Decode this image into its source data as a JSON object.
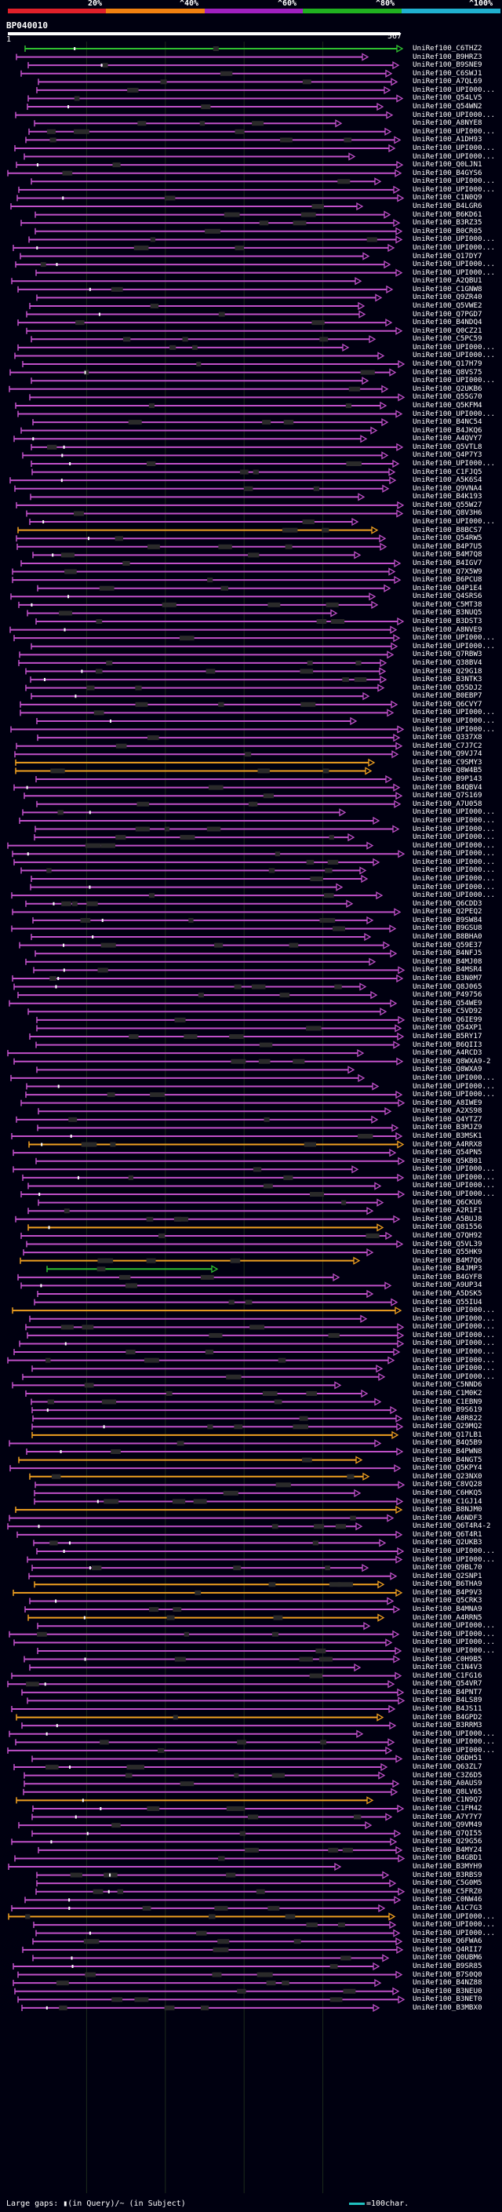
{
  "legend": {
    "labels": [
      "20%",
      "^40%",
      "^60%",
      "^80%",
      "^100%"
    ],
    "colors": [
      "#e0202a",
      "#f08010",
      "#a020c0",
      "#20b020",
      "#20b0d0"
    ]
  },
  "query": {
    "name": "BP040010",
    "start": "1",
    "end": "567"
  },
  "colors": {
    "magenta": "#c050c8",
    "orange": "#f0a020",
    "green": "#30c030",
    "gap": "#2a2a2a"
  },
  "hits": [
    {
      "label": "UniRef100_C6THZ2",
      "color": "green"
    },
    {
      "label": "UniRef100_B9HRZ3",
      "color": "magenta"
    },
    {
      "label": "UniRef100_B9SNE9",
      "color": "magenta"
    },
    {
      "label": "UniRef100_C6SWJ1",
      "color": "magenta"
    },
    {
      "label": "UniRef100_A7QL69",
      "color": "magenta"
    },
    {
      "label": "UniRef100_UPI000...",
      "color": "magenta"
    },
    {
      "label": "UniRef100_Q54LV5",
      "color": "magenta"
    },
    {
      "label": "UniRef100_Q54WN2",
      "color": "magenta"
    },
    {
      "label": "UniRef100_UPI000...",
      "color": "magenta"
    },
    {
      "label": "UniRef100_A8NYE8",
      "color": "magenta"
    },
    {
      "label": "UniRef100_UPI000...",
      "color": "magenta"
    },
    {
      "label": "UniRef100_A1DH93",
      "color": "magenta"
    },
    {
      "label": "UniRef100_UPI000...",
      "color": "magenta"
    },
    {
      "label": "UniRef100_UPI000...",
      "color": "magenta"
    },
    {
      "label": "UniRef100_Q0LJN1",
      "color": "magenta"
    },
    {
      "label": "UniRef100_B4GYS6",
      "color": "magenta"
    },
    {
      "label": "UniRef100_UPI000...",
      "color": "magenta"
    },
    {
      "label": "UniRef100_UPI000...",
      "color": "magenta"
    },
    {
      "label": "UniRef100_C1N0Q9",
      "color": "magenta"
    },
    {
      "label": "UniRef100_B4LGR6",
      "color": "magenta"
    },
    {
      "label": "UniRef100_B6KD61",
      "color": "magenta"
    },
    {
      "label": "UniRef100_B3RZ35",
      "color": "magenta"
    },
    {
      "label": "UniRef100_B0CR05",
      "color": "magenta"
    },
    {
      "label": "UniRef100_UPI000...",
      "color": "magenta"
    },
    {
      "label": "UniRef100_UPI000...",
      "color": "magenta"
    },
    {
      "label": "UniRef100_Q17DY7",
      "color": "magenta"
    },
    {
      "label": "UniRef100_UPI000...",
      "color": "magenta"
    },
    {
      "label": "UniRef100_UPI000...",
      "color": "magenta"
    },
    {
      "label": "UniRef100_A2QBU1",
      "color": "magenta"
    },
    {
      "label": "UniRef100_C1GNW8",
      "color": "magenta"
    },
    {
      "label": "UniRef100_Q9ZR40",
      "color": "magenta"
    },
    {
      "label": "UniRef100_Q5VWE2",
      "color": "magenta"
    },
    {
      "label": "UniRef100_Q7PGD7",
      "color": "magenta"
    },
    {
      "label": "UniRef100_B4NDQ4",
      "color": "magenta"
    },
    {
      "label": "UniRef100_Q0CZ21",
      "color": "magenta"
    },
    {
      "label": "UniRef100_C5PC59",
      "color": "magenta"
    },
    {
      "label": "UniRef100_UPI000...",
      "color": "magenta"
    },
    {
      "label": "UniRef100_UPI000...",
      "color": "magenta"
    },
    {
      "label": "UniRef100_Q17H79",
      "color": "magenta"
    },
    {
      "label": "UniRef100_Q8VS75",
      "color": "magenta"
    },
    {
      "label": "UniRef100_UPI000...",
      "color": "magenta"
    },
    {
      "label": "UniRef100_Q2UKB6",
      "color": "magenta"
    },
    {
      "label": "UniRef100_Q55G70",
      "color": "magenta"
    },
    {
      "label": "UniRef100_Q5KFM4",
      "color": "magenta"
    },
    {
      "label": "UniRef100_UPI000...",
      "color": "magenta"
    },
    {
      "label": "UniRef100_B4NC54",
      "color": "magenta"
    },
    {
      "label": "UniRef100_B4JKQ6",
      "color": "magenta"
    },
    {
      "label": "UniRef100_A4QVY7",
      "color": "magenta"
    },
    {
      "label": "UniRef100_Q5VTL8",
      "color": "magenta"
    },
    {
      "label": "UniRef100_Q4P7Y3",
      "color": "magenta"
    },
    {
      "label": "UniRef100_UPI000...",
      "color": "magenta"
    },
    {
      "label": "UniRef100_C1FJQ5",
      "color": "magenta"
    },
    {
      "label": "UniRef100_A5K6S4",
      "color": "magenta"
    },
    {
      "label": "UniRef100_Q9VNA4",
      "color": "magenta"
    },
    {
      "label": "UniRef100_B4K193",
      "color": "magenta"
    },
    {
      "label": "UniRef100_Q55W27",
      "color": "magenta"
    },
    {
      "label": "UniRef100_Q8V3H6",
      "color": "magenta"
    },
    {
      "label": "UniRef100_UPI000...",
      "color": "magenta"
    },
    {
      "label": "UniRef100_B8BCS7",
      "color": "orange"
    },
    {
      "label": "UniRef100_Q54RW5",
      "color": "magenta"
    },
    {
      "label": "UniRef100_B4P7U5",
      "color": "magenta"
    },
    {
      "label": "UniRef100_B4M7Q8",
      "color": "magenta"
    },
    {
      "label": "UniRef100_B4IGV7",
      "color": "magenta"
    },
    {
      "label": "UniRef100_Q7X5W9",
      "color": "magenta"
    },
    {
      "label": "UniRef100_B6PCU8",
      "color": "magenta"
    },
    {
      "label": "UniRef100_Q4P1E4",
      "color": "magenta"
    },
    {
      "label": "UniRef100_Q4SRS6",
      "color": "magenta"
    },
    {
      "label": "UniRef100_C5MT38",
      "color": "magenta"
    },
    {
      "label": "UniRef100_B3NUQ5",
      "color": "magenta"
    },
    {
      "label": "UniRef100_B3DST3",
      "color": "magenta"
    },
    {
      "label": "UniRef100_A8NVE9",
      "color": "magenta"
    },
    {
      "label": "UniRef100_UPI000...",
      "color": "magenta"
    },
    {
      "label": "UniRef100_UPI000...",
      "color": "magenta"
    },
    {
      "label": "UniRef100_Q7RBW3",
      "color": "magenta"
    },
    {
      "label": "UniRef100_Q38BV4",
      "color": "magenta"
    },
    {
      "label": "UniRef100_Q29G18",
      "color": "magenta"
    },
    {
      "label": "UniRef100_B3NTK3",
      "color": "magenta"
    },
    {
      "label": "UniRef100_Q55DJ2",
      "color": "magenta"
    },
    {
      "label": "UniRef100_B0EBP7",
      "color": "magenta"
    },
    {
      "label": "UniRef100_Q6CVY7",
      "color": "magenta"
    },
    {
      "label": "UniRef100_UPI000...",
      "color": "magenta"
    },
    {
      "label": "UniRef100_UPI000...",
      "color": "magenta"
    },
    {
      "label": "UniRef100_UPI000...",
      "color": "magenta"
    },
    {
      "label": "UniRef100_Q337X8",
      "color": "magenta"
    },
    {
      "label": "UniRef100_C7J7C2",
      "color": "magenta"
    },
    {
      "label": "UniRef100_Q9VJ74",
      "color": "magenta"
    },
    {
      "label": "UniRef100_C9SMY3",
      "color": "orange"
    },
    {
      "label": "UniRef100_Q8W4B5",
      "color": "orange"
    },
    {
      "label": "UniRef100_B9P143",
      "color": "magenta"
    },
    {
      "label": "UniRef100_B4QBV4",
      "color": "magenta"
    },
    {
      "label": "UniRef100_Q7S169",
      "color": "magenta"
    },
    {
      "label": "UniRef100_A7U058",
      "color": "magenta"
    },
    {
      "label": "UniRef100_UPI000...",
      "color": "magenta"
    },
    {
      "label": "UniRef100_UPI000...",
      "color": "magenta"
    },
    {
      "label": "UniRef100_UPI000...",
      "color": "magenta"
    },
    {
      "label": "UniRef100_UPI000...",
      "color": "magenta"
    },
    {
      "label": "UniRef100_UPI000...",
      "color": "magenta"
    },
    {
      "label": "UniRef100_UPI000...",
      "color": "magenta"
    },
    {
      "label": "UniRef100_UPI000...",
      "color": "magenta"
    },
    {
      "label": "UniRef100_UPI000...",
      "color": "magenta"
    },
    {
      "label": "UniRef100_UPI000...",
      "color": "magenta"
    },
    {
      "label": "UniRef100_UPI000...",
      "color": "magenta"
    },
    {
      "label": "UniRef100_UPI000...",
      "color": "magenta"
    },
    {
      "label": "UniRef100_Q6CDD3",
      "color": "magenta"
    },
    {
      "label": "UniRef100_Q2PEQ2",
      "color": "magenta"
    },
    {
      "label": "UniRef100_B9SW84",
      "color": "magenta"
    },
    {
      "label": "UniRef100_B9GSU8",
      "color": "magenta"
    },
    {
      "label": "UniRef100_B8BHA0",
      "color": "magenta"
    },
    {
      "label": "UniRef100_Q59E37",
      "color": "magenta"
    },
    {
      "label": "UniRef100_B4NFJ5",
      "color": "magenta"
    },
    {
      "label": "UniRef100_B4MJ08",
      "color": "magenta"
    },
    {
      "label": "UniRef100_B4MSR4",
      "color": "magenta"
    },
    {
      "label": "UniRef100_B3N0M7",
      "color": "magenta"
    },
    {
      "label": "UniRef100_Q8J065",
      "color": "magenta"
    },
    {
      "label": "UniRef100_P49756",
      "color": "magenta"
    },
    {
      "label": "UniRef100_Q54WE9",
      "color": "magenta"
    },
    {
      "label": "UniRef100_C5VD92",
      "color": "magenta"
    },
    {
      "label": "UniRef100_Q6IE99",
      "color": "magenta"
    },
    {
      "label": "UniRef100_Q54XP1",
      "color": "magenta"
    },
    {
      "label": "UniRef100_B5RY17",
      "color": "magenta"
    },
    {
      "label": "UniRef100_B6QII3",
      "color": "magenta"
    },
    {
      "label": "UniRef100_A4RCD3",
      "color": "magenta"
    },
    {
      "label": "UniRef100_Q8WXA9-2",
      "color": "magenta"
    },
    {
      "label": "UniRef100_Q8WXA9",
      "color": "magenta"
    },
    {
      "label": "UniRef100_UPI000...",
      "color": "magenta"
    },
    {
      "label": "UniRef100_UPI000...",
      "color": "magenta"
    },
    {
      "label": "UniRef100_UPI000...",
      "color": "magenta"
    },
    {
      "label": "UniRef100_A8IWE9",
      "color": "magenta"
    },
    {
      "label": "UniRef100_A2XS98",
      "color": "magenta"
    },
    {
      "label": "UniRef100_Q4YTZ7",
      "color": "magenta"
    },
    {
      "label": "UniRef100_B3MJZ9",
      "color": "magenta"
    },
    {
      "label": "UniRef100_B3MSK1",
      "color": "magenta"
    },
    {
      "label": "UniRef100_A4RRX8",
      "color": "orange"
    },
    {
      "label": "UniRef100_Q54PN5",
      "color": "magenta"
    },
    {
      "label": "UniRef100_Q5KB01",
      "color": "magenta"
    },
    {
      "label": "UniRef100_UPI000...",
      "color": "magenta"
    },
    {
      "label": "UniRef100_UPI000...",
      "color": "magenta"
    },
    {
      "label": "UniRef100_UPI000...",
      "color": "magenta"
    },
    {
      "label": "UniRef100_UPI000...",
      "color": "magenta"
    },
    {
      "label": "UniRef100_Q6CKU6",
      "color": "magenta"
    },
    {
      "label": "UniRef100_A2R1F1",
      "color": "magenta"
    },
    {
      "label": "UniRef100_A5BUJ8",
      "color": "magenta"
    },
    {
      "label": "UniRef100_Q81556",
      "color": "orange"
    },
    {
      "label": "UniRef100_Q7QH92",
      "color": "magenta"
    },
    {
      "label": "UniRef100_Q5VL39",
      "color": "magenta"
    },
    {
      "label": "UniRef100_Q55HK9",
      "color": "magenta"
    },
    {
      "label": "UniRef100_B4M7Q6",
      "color": "orange"
    },
    {
      "label": "UniRef100_B4JMP3",
      "color": "green"
    },
    {
      "label": "UniRef100_B4GYF8",
      "color": "magenta"
    },
    {
      "label": "UniRef100_A9UP34",
      "color": "magenta"
    },
    {
      "label": "UniRef100_A5DSK5",
      "color": "magenta"
    },
    {
      "label": "UniRef100_Q55IU4",
      "color": "magenta"
    },
    {
      "label": "UniRef100_UPI000...",
      "color": "orange"
    },
    {
      "label": "UniRef100_UPI000...",
      "color": "magenta"
    },
    {
      "label": "UniRef100_UPI000...",
      "color": "magenta"
    },
    {
      "label": "UniRef100_UPI000...",
      "color": "magenta"
    },
    {
      "label": "UniRef100_UPI000...",
      "color": "magenta"
    },
    {
      "label": "UniRef100_UPI000...",
      "color": "magenta"
    },
    {
      "label": "UniRef100_UPI000...",
      "color": "magenta"
    },
    {
      "label": "UniRef100_UPI000...",
      "color": "magenta"
    },
    {
      "label": "UniRef100_UPI000...",
      "color": "magenta"
    },
    {
      "label": "UniRef100_C5NND6",
      "color": "magenta"
    },
    {
      "label": "UniRef100_C1M0K2",
      "color": "magenta"
    },
    {
      "label": "UniRef100_C1EBN9",
      "color": "magenta"
    },
    {
      "label": "UniRef100_B9S619",
      "color": "magenta"
    },
    {
      "label": "UniRef100_A8R822",
      "color": "magenta"
    },
    {
      "label": "UniRef100_Q29MQ2",
      "color": "magenta"
    },
    {
      "label": "UniRef100_Q17LB1",
      "color": "orange"
    },
    {
      "label": "UniRef100_B4Q5B9",
      "color": "magenta"
    },
    {
      "label": "UniRef100_B4PWN8",
      "color": "magenta"
    },
    {
      "label": "UniRef100_B4NGT5",
      "color": "orange"
    },
    {
      "label": "UniRef100_Q5KPY4",
      "color": "magenta"
    },
    {
      "label": "UniRef100_Q23NX0",
      "color": "orange"
    },
    {
      "label": "UniRef100_C8VQ28",
      "color": "magenta"
    },
    {
      "label": "UniRef100_C6HKQ5",
      "color": "magenta"
    },
    {
      "label": "UniRef100_C1GJ14",
      "color": "magenta"
    },
    {
      "label": "UniRef100_B8NJM0",
      "color": "orange"
    },
    {
      "label": "UniRef100_A6NDF3",
      "color": "magenta"
    },
    {
      "label": "UniRef100_Q6T4R4-2",
      "color": "magenta"
    },
    {
      "label": "UniRef100_Q6T4R1",
      "color": "magenta"
    },
    {
      "label": "UniRef100_Q2UKB3",
      "color": "magenta"
    },
    {
      "label": "UniRef100_UPI000...",
      "color": "magenta"
    },
    {
      "label": "UniRef100_UPI000...",
      "color": "magenta"
    },
    {
      "label": "UniRef100_Q9BL70",
      "color": "magenta"
    },
    {
      "label": "UniRef100_Q2SNP1",
      "color": "magenta"
    },
    {
      "label": "UniRef100_B6THA9",
      "color": "orange"
    },
    {
      "label": "UniRef100_B4P9V3",
      "color": "orange"
    },
    {
      "label": "UniRef100_Q5CRK3",
      "color": "magenta"
    },
    {
      "label": "UniRef100_B4MNA9",
      "color": "magenta"
    },
    {
      "label": "UniRef100_A4RRN5",
      "color": "orange"
    },
    {
      "label": "UniRef100_UPI000...",
      "color": "magenta"
    },
    {
      "label": "UniRef100_UPI000...",
      "color": "magenta"
    },
    {
      "label": "UniRef100_UPI000...",
      "color": "magenta"
    },
    {
      "label": "UniRef100_UPI000...",
      "color": "magenta"
    },
    {
      "label": "UniRef100_C0H9B5",
      "color": "magenta"
    },
    {
      "label": "UniRef100_C1N4V3",
      "color": "magenta"
    },
    {
      "label": "UniRef100_C1FG16",
      "color": "magenta"
    },
    {
      "label": "UniRef100_Q54VR7",
      "color": "magenta"
    },
    {
      "label": "UniRef100_B4PNT7",
      "color": "magenta"
    },
    {
      "label": "UniRef100_B4LS89",
      "color": "magenta"
    },
    {
      "label": "UniRef100_B4JS11",
      "color": "magenta"
    },
    {
      "label": "UniRef100_B4GPD2",
      "color": "orange"
    },
    {
      "label": "UniRef100_B3RRM3",
      "color": "magenta"
    },
    {
      "label": "UniRef100_UPI000...",
      "color": "magenta"
    },
    {
      "label": "UniRef100_UPI000...",
      "color": "magenta"
    },
    {
      "label": "UniRef100_UPI000...",
      "color": "magenta"
    },
    {
      "label": "UniRef100_Q6DH51",
      "color": "magenta"
    },
    {
      "label": "UniRef100_Q63ZL7",
      "color": "magenta"
    },
    {
      "label": "UniRef100_C3Z6D5",
      "color": "magenta"
    },
    {
      "label": "UniRef100_A0AUS9",
      "color": "magenta"
    },
    {
      "label": "UniRef100_Q8LV65",
      "color": "magenta"
    },
    {
      "label": "UniRef100_C1N9Q7",
      "color": "orange"
    },
    {
      "label": "UniRef100_C1FM42",
      "color": "magenta"
    },
    {
      "label": "UniRef100_A7Y7Y7",
      "color": "magenta"
    },
    {
      "label": "UniRef100_Q9VM49",
      "color": "magenta"
    },
    {
      "label": "UniRef100_Q7QI55",
      "color": "magenta"
    },
    {
      "label": "UniRef100_Q29G56",
      "color": "magenta"
    },
    {
      "label": "UniRef100_B4MY24",
      "color": "magenta"
    },
    {
      "label": "UniRef100_B4GBD1",
      "color": "magenta"
    },
    {
      "label": "UniRef100_B3MYH9",
      "color": "magenta"
    },
    {
      "label": "UniRef100_B3RBS9",
      "color": "magenta"
    },
    {
      "label": "UniRef100_C5G0M5",
      "color": "magenta"
    },
    {
      "label": "UniRef100_C5FRZ0",
      "color": "magenta"
    },
    {
      "label": "UniRef100_C0NW46",
      "color": "magenta"
    },
    {
      "label": "UniRef100_A1C7G3",
      "color": "magenta"
    },
    {
      "label": "UniRef100_UPI000...",
      "color": "orange"
    },
    {
      "label": "UniRef100_UPI000...",
      "color": "magenta"
    },
    {
      "label": "UniRef100_UPI000...",
      "color": "magenta"
    },
    {
      "label": "UniRef100_Q6FWA6",
      "color": "magenta"
    },
    {
      "label": "UniRef100_Q4RII7",
      "color": "magenta"
    },
    {
      "label": "UniRef100_Q0UBM6",
      "color": "magenta"
    },
    {
      "label": "UniRef100_B9SR85",
      "color": "magenta"
    },
    {
      "label": "UniRef100_B7S0Q0",
      "color": "magenta"
    },
    {
      "label": "UniRef100_B4NZ88",
      "color": "magenta"
    },
    {
      "label": "UniRef100_B3NEU0",
      "color": "magenta"
    },
    {
      "label": "UniRef100_B3NET0",
      "color": "magenta"
    },
    {
      "label": "UniRef100_B3MBX0",
      "color": "magenta"
    }
  ],
  "footer": {
    "text": "Large gaps: ▮(in Query)/~ (in Subject)",
    "scale_text": "=100char."
  }
}
